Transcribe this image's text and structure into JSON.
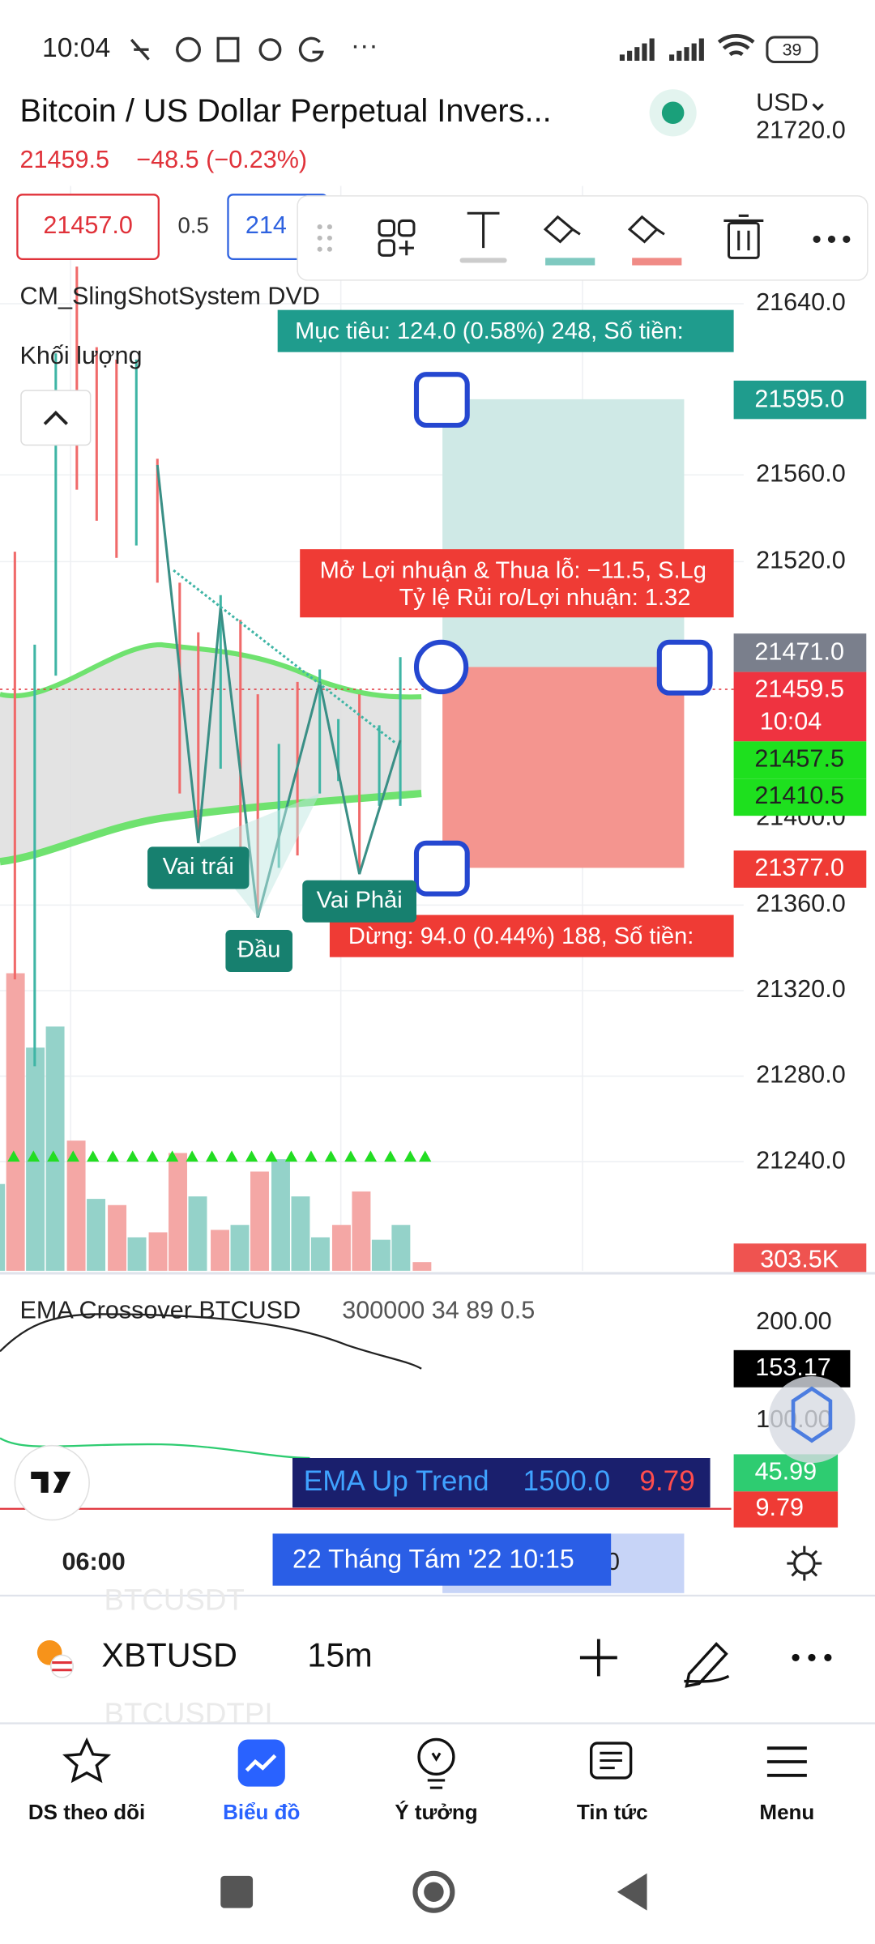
{
  "status_bar": {
    "time": "10:04",
    "battery": "39"
  },
  "header": {
    "title": "Bitcoin / US Dollar Perpetual Invers...",
    "currency": "USD",
    "price": "21459.5",
    "change": "−48.5 (−0.23%)"
  },
  "order": {
    "sell": "21457.0",
    "spread": "0.5",
    "buy": "214"
  },
  "indicators": [
    "CM_SlingShotSystem DVD",
    "Khối lượng"
  ],
  "price_axis": [
    "21720.0",
    "21640.0",
    "21560.0",
    "21520.0",
    "21400.0",
    "21360.0",
    "21320.0",
    "21280.0",
    "21240.0"
  ],
  "price_tags": {
    "target": "21595.0",
    "entry": "21471.0",
    "last": "21459.5",
    "countdown": "10:04",
    "bid": "21457.5",
    "level": "21410.5",
    "stop": "21377.0",
    "volume": "303.5K"
  },
  "position": {
    "target_label": "Mục tiêu: 124.0 (0.58%) 248, Số tiền:",
    "pnl_label": "Mở Lợi nhuận & Thua lỗ: −11.5, S.Lg",
    "ratio_label": "Tỷ lệ Rủi ro/Lợi nhuận: 1.32",
    "stop_label": "Dừng: 94.0 (0.44%) 188, Số tiền:"
  },
  "pattern": {
    "left_shoulder": "Vai trái",
    "head": "Đầu",
    "right_shoulder": "Vai Phải"
  },
  "lower_pane": {
    "title": "EMA Crossover BTCUSD",
    "params": "300000 34 89 0.5",
    "axis": [
      "200.00",
      "100.00"
    ],
    "tags": [
      "153.17",
      "45.99",
      "9.79"
    ],
    "legend": {
      "name": "EMA Up Trend",
      "value": "1500.0",
      "extra": "9.79"
    }
  },
  "time_axis": {
    "left": "06:00",
    "cursor": "22 Tháng Tám '22  10:15",
    "right": "0"
  },
  "symbol_bar": {
    "ghost_top": "BTCUSDT",
    "symbol": "XBTUSD",
    "interval": "15m",
    "ghost_bottom": "BTCUSDTPI"
  },
  "nav": [
    "DS theo dõi",
    "Biểu đồ",
    "Ý tưởng",
    "Tin tức",
    "Menu"
  ]
}
